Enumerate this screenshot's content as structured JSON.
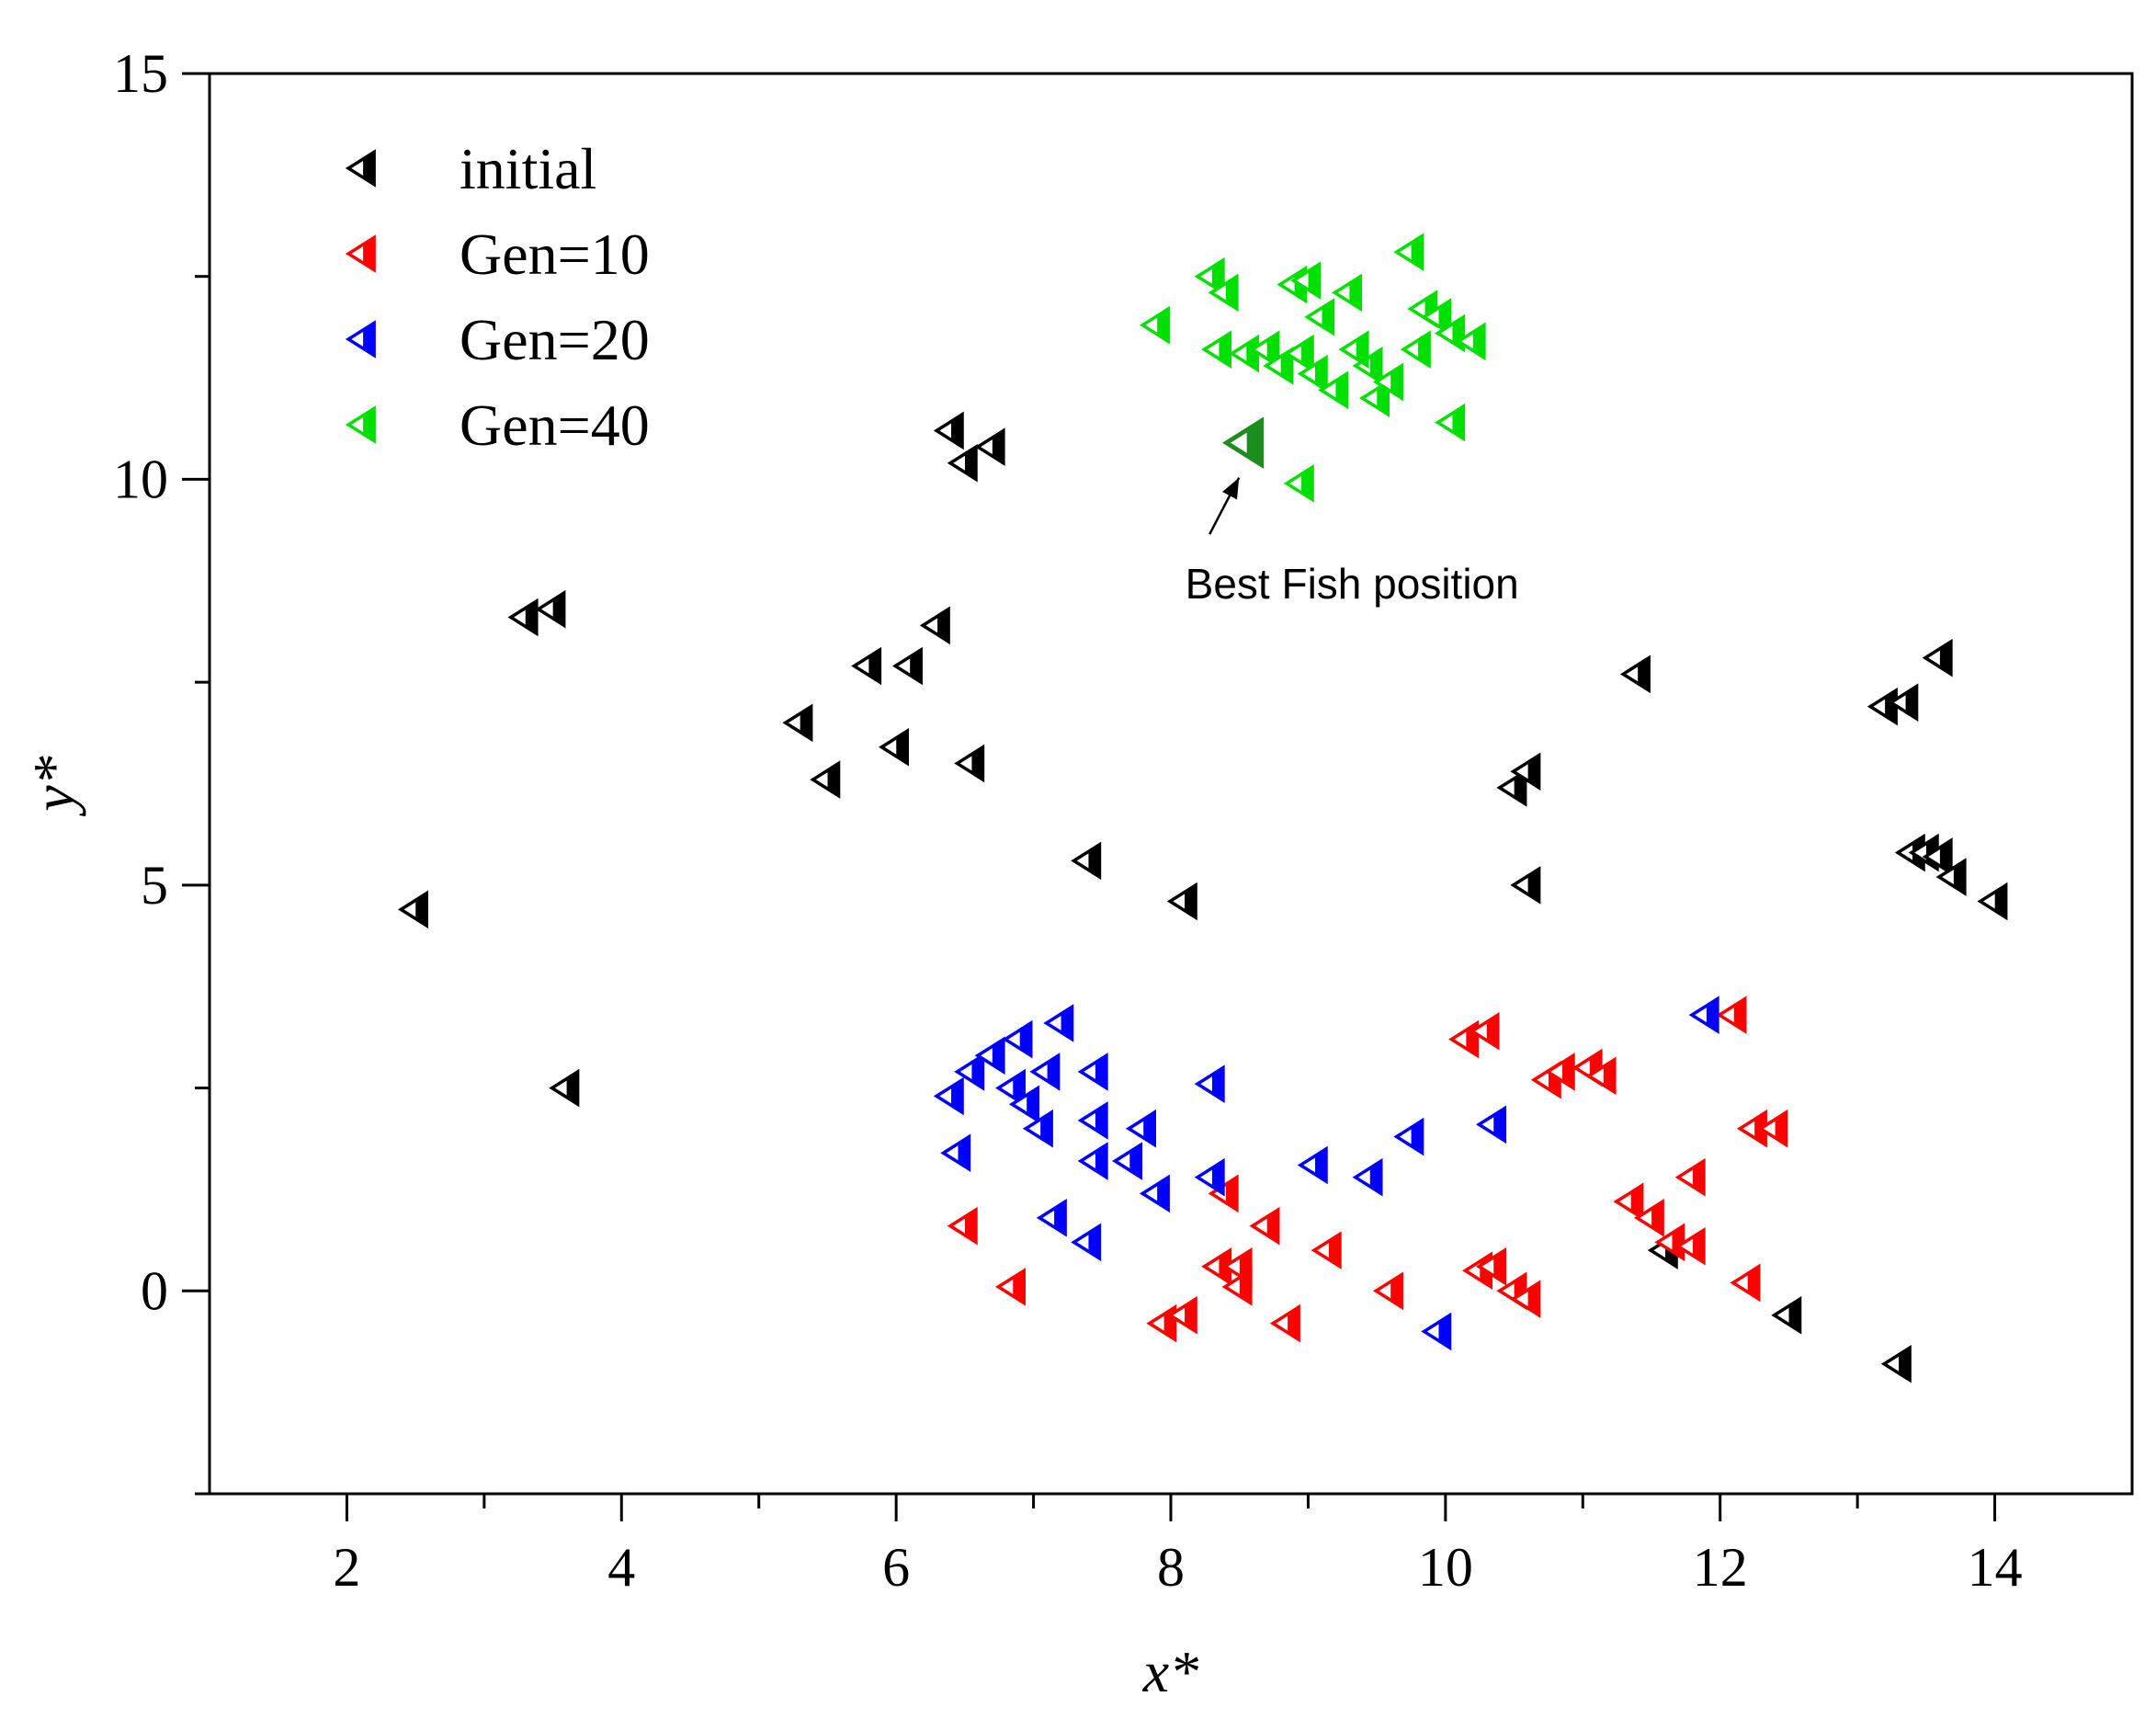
{
  "chart_data": {
    "type": "scatter",
    "title": "",
    "xlabel": "x*",
    "ylabel": "y*",
    "xlim": [
      1,
      15
    ],
    "ylim": [
      -2.5,
      15
    ],
    "xticks": [
      2,
      4,
      6,
      8,
      10,
      12,
      14
    ],
    "yticks": [
      0,
      5,
      10,
      15
    ],
    "grid": false,
    "legend_position": "top-left",
    "series": [
      {
        "name": "initial",
        "color": "#000000",
        "marker": "left-triangle-half-filled",
        "points": [
          [
            2.5,
            4.7
          ],
          [
            3.3,
            8.3
          ],
          [
            3.5,
            8.4
          ],
          [
            3.6,
            2.5
          ],
          [
            5.3,
            7.0
          ],
          [
            5.5,
            6.3
          ],
          [
            5.8,
            7.7
          ],
          [
            6.0,
            6.7
          ],
          [
            6.1,
            7.7
          ],
          [
            6.3,
            8.2
          ],
          [
            6.4,
            10.6
          ],
          [
            6.5,
            10.2
          ],
          [
            6.55,
            6.5
          ],
          [
            6.7,
            10.4
          ],
          [
            7.4,
            5.3
          ],
          [
            8.1,
            4.8
          ],
          [
            10.5,
            6.2
          ],
          [
            10.6,
            6.4
          ],
          [
            10.6,
            5.0
          ],
          [
            11.4,
            7.6
          ],
          [
            11.6,
            0.5
          ],
          [
            12.5,
            -0.3
          ],
          [
            13.2,
            7.2
          ],
          [
            13.35,
            7.25
          ],
          [
            13.4,
            5.4
          ],
          [
            13.5,
            5.4
          ],
          [
            13.6,
            7.8
          ],
          [
            13.6,
            5.35
          ],
          [
            13.7,
            5.1
          ],
          [
            14.0,
            4.8
          ],
          [
            13.3,
            -0.9
          ]
        ]
      },
      {
        "name": "Gen=10",
        "color": "#ff0000",
        "marker": "left-triangle-half-filled",
        "points": [
          [
            6.5,
            0.8
          ],
          [
            6.85,
            0.05
          ],
          [
            7.95,
            -0.4
          ],
          [
            8.1,
            -0.3
          ],
          [
            8.35,
            0.3
          ],
          [
            8.4,
            1.2
          ],
          [
            8.5,
            0.3
          ],
          [
            8.5,
            0.05
          ],
          [
            8.7,
            0.8
          ],
          [
            8.85,
            -0.4
          ],
          [
            9.15,
            0.5
          ],
          [
            9.6,
            0.0
          ],
          [
            10.15,
            3.1
          ],
          [
            10.3,
            3.2
          ],
          [
            10.25,
            0.25
          ],
          [
            10.35,
            0.3
          ],
          [
            10.5,
            0.0
          ],
          [
            10.6,
            -0.1
          ],
          [
            10.75,
            2.6
          ],
          [
            10.85,
            2.7
          ],
          [
            11.05,
            2.75
          ],
          [
            11.15,
            2.65
          ],
          [
            11.35,
            1.1
          ],
          [
            11.5,
            0.9
          ],
          [
            11.65,
            0.6
          ],
          [
            11.8,
            0.55
          ],
          [
            11.8,
            1.4
          ],
          [
            12.1,
            3.4
          ],
          [
            12.25,
            2.0
          ],
          [
            12.4,
            2.0
          ],
          [
            12.2,
            0.1
          ]
        ]
      },
      {
        "name": "Gen=20",
        "color": "#0000ff",
        "marker": "left-triangle-half-filled",
        "points": [
          [
            6.4,
            2.4
          ],
          [
            6.45,
            1.7
          ],
          [
            6.55,
            2.7
          ],
          [
            6.7,
            2.9
          ],
          [
            6.85,
            2.5
          ],
          [
            6.9,
            3.1
          ],
          [
            6.95,
            2.3
          ],
          [
            7.05,
            2.0
          ],
          [
            7.1,
            2.7
          ],
          [
            7.2,
            3.3
          ],
          [
            7.15,
            0.9
          ],
          [
            7.45,
            2.7
          ],
          [
            7.45,
            2.1
          ],
          [
            7.45,
            1.6
          ],
          [
            7.4,
            0.6
          ],
          [
            7.7,
            1.6
          ],
          [
            7.8,
            2.0
          ],
          [
            7.9,
            1.2
          ],
          [
            8.3,
            2.55
          ],
          [
            8.3,
            1.4
          ],
          [
            9.05,
            1.55
          ],
          [
            9.45,
            1.4
          ],
          [
            9.75,
            1.9
          ],
          [
            9.95,
            -0.5
          ],
          [
            10.35,
            2.05
          ],
          [
            11.9,
            3.4
          ]
        ]
      },
      {
        "name": "Gen=40",
        "color": "#00e000",
        "marker": "left-triangle-half-filled",
        "points": [
          [
            7.9,
            11.9
          ],
          [
            8.3,
            12.5
          ],
          [
            8.4,
            12.3
          ],
          [
            8.35,
            11.6
          ],
          [
            8.55,
            11.55
          ],
          [
            8.7,
            11.6
          ],
          [
            8.8,
            11.4
          ],
          [
            8.9,
            12.4
          ],
          [
            8.95,
            11.55
          ],
          [
            9.0,
            12.45
          ],
          [
            9.05,
            11.3
          ],
          [
            9.1,
            12.0
          ],
          [
            9.2,
            11.1
          ],
          [
            9.3,
            12.3
          ],
          [
            9.45,
            11.4
          ],
          [
            9.5,
            11.0
          ],
          [
            9.6,
            11.2
          ],
          [
            9.75,
            12.8
          ],
          [
            9.8,
            11.6
          ],
          [
            9.85,
            12.1
          ],
          [
            9.95,
            12.0
          ],
          [
            10.05,
            11.8
          ],
          [
            10.2,
            11.7
          ],
          [
            10.05,
            10.7
          ],
          [
            8.95,
            9.95
          ],
          [
            9.35,
            11.6
          ]
        ]
      }
    ],
    "highlight": {
      "name": "Best Fish position",
      "point": [
        8.55,
        10.45
      ],
      "color": "#1e8c1e"
    },
    "annotations": [
      {
        "text": "Best Fish position",
        "x": 8.55,
        "y": 8.7
      }
    ]
  }
}
